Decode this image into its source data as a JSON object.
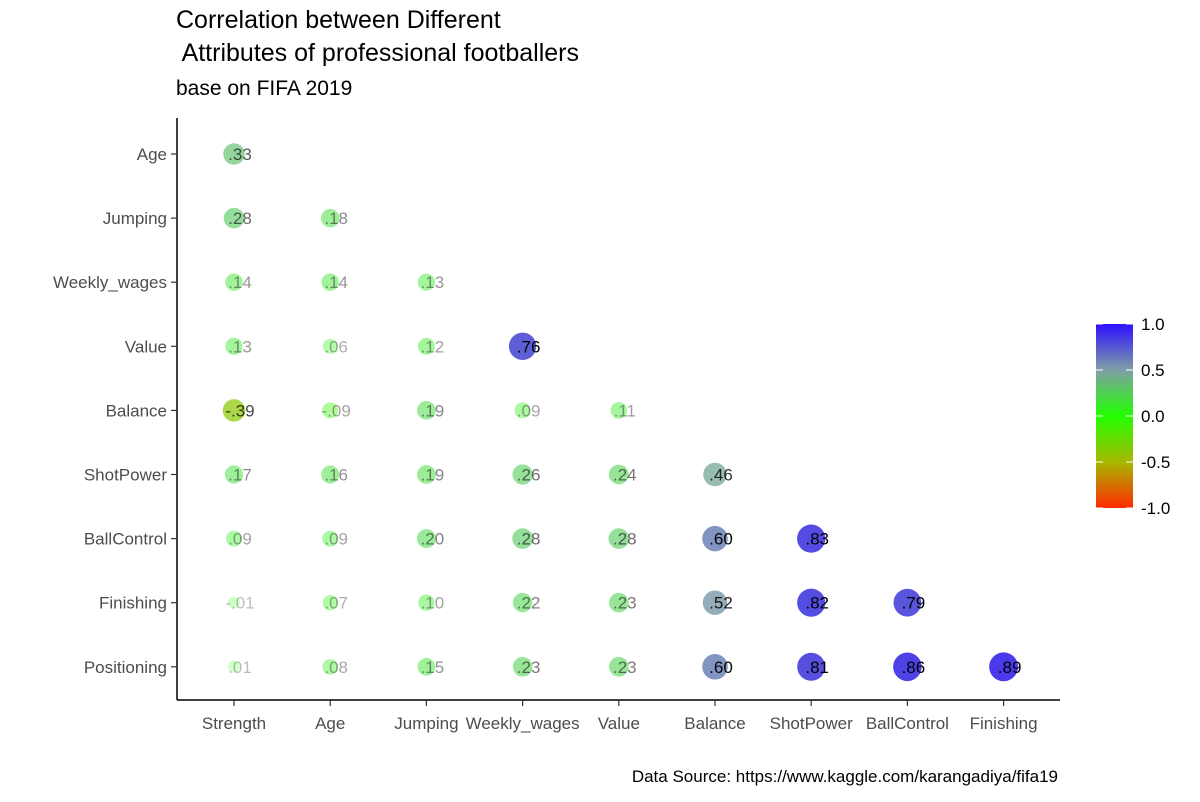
{
  "chart_data": {
    "type": "correlation-bubble",
    "title_line1": "Correlation between Different",
    "title_line2": " Attributes of professional footballers",
    "subtitle": "base on FIFA 2019",
    "caption": "Data Source: https://www.kaggle.com/karangadiya/fifa19",
    "x_categories": [
      "Strength",
      "Age",
      "Jumping",
      "Weekly_wages",
      "Value",
      "Balance",
      "ShotPower",
      "BallControl",
      "Finishing"
    ],
    "y_categories": [
      "Age",
      "Jumping",
      "Weekly_wages",
      "Value",
      "Balance",
      "ShotPower",
      "BallControl",
      "Finishing",
      "Positioning"
    ],
    "cells": [
      {
        "x": "Strength",
        "y": "Age",
        "value": 0.33,
        "label": ".33"
      },
      {
        "x": "Strength",
        "y": "Jumping",
        "value": 0.28,
        "label": ".28"
      },
      {
        "x": "Age",
        "y": "Jumping",
        "value": 0.18,
        "label": ".18"
      },
      {
        "x": "Strength",
        "y": "Weekly_wages",
        "value": 0.14,
        "label": ".14"
      },
      {
        "x": "Age",
        "y": "Weekly_wages",
        "value": 0.14,
        "label": ".14"
      },
      {
        "x": "Jumping",
        "y": "Weekly_wages",
        "value": 0.13,
        "label": ".13"
      },
      {
        "x": "Strength",
        "y": "Value",
        "value": 0.13,
        "label": ".13"
      },
      {
        "x": "Age",
        "y": "Value",
        "value": 0.06,
        "label": ".06"
      },
      {
        "x": "Jumping",
        "y": "Value",
        "value": 0.12,
        "label": ".12"
      },
      {
        "x": "Weekly_wages",
        "y": "Value",
        "value": 0.76,
        "label": ".76"
      },
      {
        "x": "Strength",
        "y": "Balance",
        "value": -0.39,
        "label": "-.39"
      },
      {
        "x": "Age",
        "y": "Balance",
        "value": -0.09,
        "label": "-.09"
      },
      {
        "x": "Jumping",
        "y": "Balance",
        "value": 0.19,
        "label": ".19"
      },
      {
        "x": "Weekly_wages",
        "y": "Balance",
        "value": 0.09,
        "label": ".09"
      },
      {
        "x": "Value",
        "y": "Balance",
        "value": 0.11,
        "label": ".11"
      },
      {
        "x": "Strength",
        "y": "ShotPower",
        "value": 0.17,
        "label": ".17"
      },
      {
        "x": "Age",
        "y": "ShotPower",
        "value": 0.16,
        "label": ".16"
      },
      {
        "x": "Jumping",
        "y": "ShotPower",
        "value": 0.19,
        "label": ".19"
      },
      {
        "x": "Weekly_wages",
        "y": "ShotPower",
        "value": 0.26,
        "label": ".26"
      },
      {
        "x": "Value",
        "y": "ShotPower",
        "value": 0.24,
        "label": ".24"
      },
      {
        "x": "Balance",
        "y": "ShotPower",
        "value": 0.46,
        "label": ".46"
      },
      {
        "x": "Strength",
        "y": "BallControl",
        "value": 0.09,
        "label": ".09"
      },
      {
        "x": "Age",
        "y": "BallControl",
        "value": 0.09,
        "label": ".09"
      },
      {
        "x": "Jumping",
        "y": "BallControl",
        "value": 0.2,
        "label": ".20"
      },
      {
        "x": "Weekly_wages",
        "y": "BallControl",
        "value": 0.28,
        "label": ".28"
      },
      {
        "x": "Value",
        "y": "BallControl",
        "value": 0.28,
        "label": ".28"
      },
      {
        "x": "Balance",
        "y": "BallControl",
        "value": 0.6,
        "label": ".60"
      },
      {
        "x": "ShotPower",
        "y": "BallControl",
        "value": 0.83,
        "label": ".83"
      },
      {
        "x": "Strength",
        "y": "Finishing",
        "value": -0.01,
        "label": "-.01"
      },
      {
        "x": "Age",
        "y": "Finishing",
        "value": 0.07,
        "label": ".07"
      },
      {
        "x": "Jumping",
        "y": "Finishing",
        "value": 0.1,
        "label": ".10"
      },
      {
        "x": "Weekly_wages",
        "y": "Finishing",
        "value": 0.22,
        "label": ".22"
      },
      {
        "x": "Value",
        "y": "Finishing",
        "value": 0.23,
        "label": ".23"
      },
      {
        "x": "Balance",
        "y": "Finishing",
        "value": 0.52,
        "label": ".52"
      },
      {
        "x": "ShotPower",
        "y": "Finishing",
        "value": 0.82,
        "label": ".82"
      },
      {
        "x": "BallControl",
        "y": "Finishing",
        "value": 0.79,
        "label": ".79"
      },
      {
        "x": "Strength",
        "y": "Positioning",
        "value": 0.01,
        "label": ".01"
      },
      {
        "x": "Age",
        "y": "Positioning",
        "value": 0.08,
        "label": ".08"
      },
      {
        "x": "Jumping",
        "y": "Positioning",
        "value": 0.15,
        "label": ".15"
      },
      {
        "x": "Weekly_wages",
        "y": "Positioning",
        "value": 0.23,
        "label": ".23"
      },
      {
        "x": "Value",
        "y": "Positioning",
        "value": 0.23,
        "label": ".23"
      },
      {
        "x": "Balance",
        "y": "Positioning",
        "value": 0.6,
        "label": ".60"
      },
      {
        "x": "ShotPower",
        "y": "Positioning",
        "value": 0.81,
        "label": ".81"
      },
      {
        "x": "BallControl",
        "y": "Positioning",
        "value": 0.86,
        "label": ".86"
      },
      {
        "x": "Finishing",
        "y": "Positioning",
        "value": 0.89,
        "label": ".89"
      }
    ],
    "colorbar": {
      "range": [
        -1.0,
        1.0
      ],
      "ticks": [
        1.0,
        0.5,
        0.0,
        -0.5,
        -1.0
      ],
      "tick_labels": [
        "1.0",
        "0.5",
        "0.0",
        "-0.5",
        "-1.0"
      ],
      "colors": {
        "low": "#ff2a00",
        "mid_low": "#a6b800",
        "zero": "#22ff00",
        "mid_high": "#7f9fa6",
        "high": "#2e10ff"
      }
    },
    "legend_position": "right",
    "grid": false
  }
}
